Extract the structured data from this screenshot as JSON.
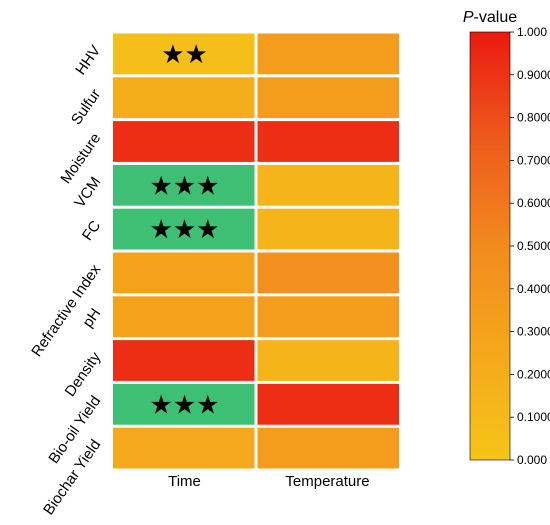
{
  "chart_data": {
    "type": "heatmap",
    "rows": [
      "HHV",
      "Sulfur",
      "Moisture",
      "VCM",
      "FC",
      "Refractive Index",
      "pH",
      "Density",
      "Bio-oil Yield",
      "Biochar Yield"
    ],
    "columns": [
      "Time",
      "Temperature"
    ],
    "values": [
      [
        0.06,
        0.34
      ],
      [
        0.2,
        0.34
      ],
      [
        0.92,
        0.92
      ],
      [
        null,
        0.14
      ],
      [
        null,
        0.14
      ],
      [
        0.3,
        0.45
      ],
      [
        0.3,
        0.34
      ],
      [
        0.92,
        0.14
      ],
      [
        null,
        0.92
      ],
      [
        0.24,
        0.34
      ]
    ],
    "significance_marks": [
      [
        "★★",
        ""
      ],
      [
        "",
        ""
      ],
      [
        "",
        ""
      ],
      [
        "★★★",
        ""
      ],
      [
        "★★★",
        ""
      ],
      [
        "",
        ""
      ],
      [
        "",
        ""
      ],
      [
        "",
        ""
      ],
      [
        "★★★",
        ""
      ],
      [
        "",
        ""
      ]
    ],
    "significant_color": "#3dbf74",
    "colorbar": {
      "title_italic": "P",
      "title_rest": "-value",
      "range": [
        0,
        1
      ],
      "tick_labels": [
        "0.000",
        "0.1000",
        "0.2000",
        "0.3000",
        "0.4000",
        "0.5000",
        "0.6000",
        "0.7000",
        "0.8000",
        "0.9000",
        "1.000"
      ],
      "colors": [
        "#f5c518",
        "#f5a81c",
        "#f28a1e",
        "#ee5a1c",
        "#ea1a10"
      ]
    },
    "grid": false,
    "legend_placement": "right"
  }
}
